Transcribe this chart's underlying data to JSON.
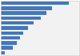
{
  "values": [
    160,
    120,
    108,
    95,
    78,
    65,
    52,
    45,
    38,
    28,
    10
  ],
  "bar_color": "#4477bb",
  "background_color": "#ffffff",
  "plot_bg_color": "#f2f2f2",
  "border_color": "#cccccc",
  "xlim": [
    0,
    185
  ],
  "figsize": [
    1.0,
    0.71
  ],
  "dpi": 100,
  "bar_height": 0.72
}
